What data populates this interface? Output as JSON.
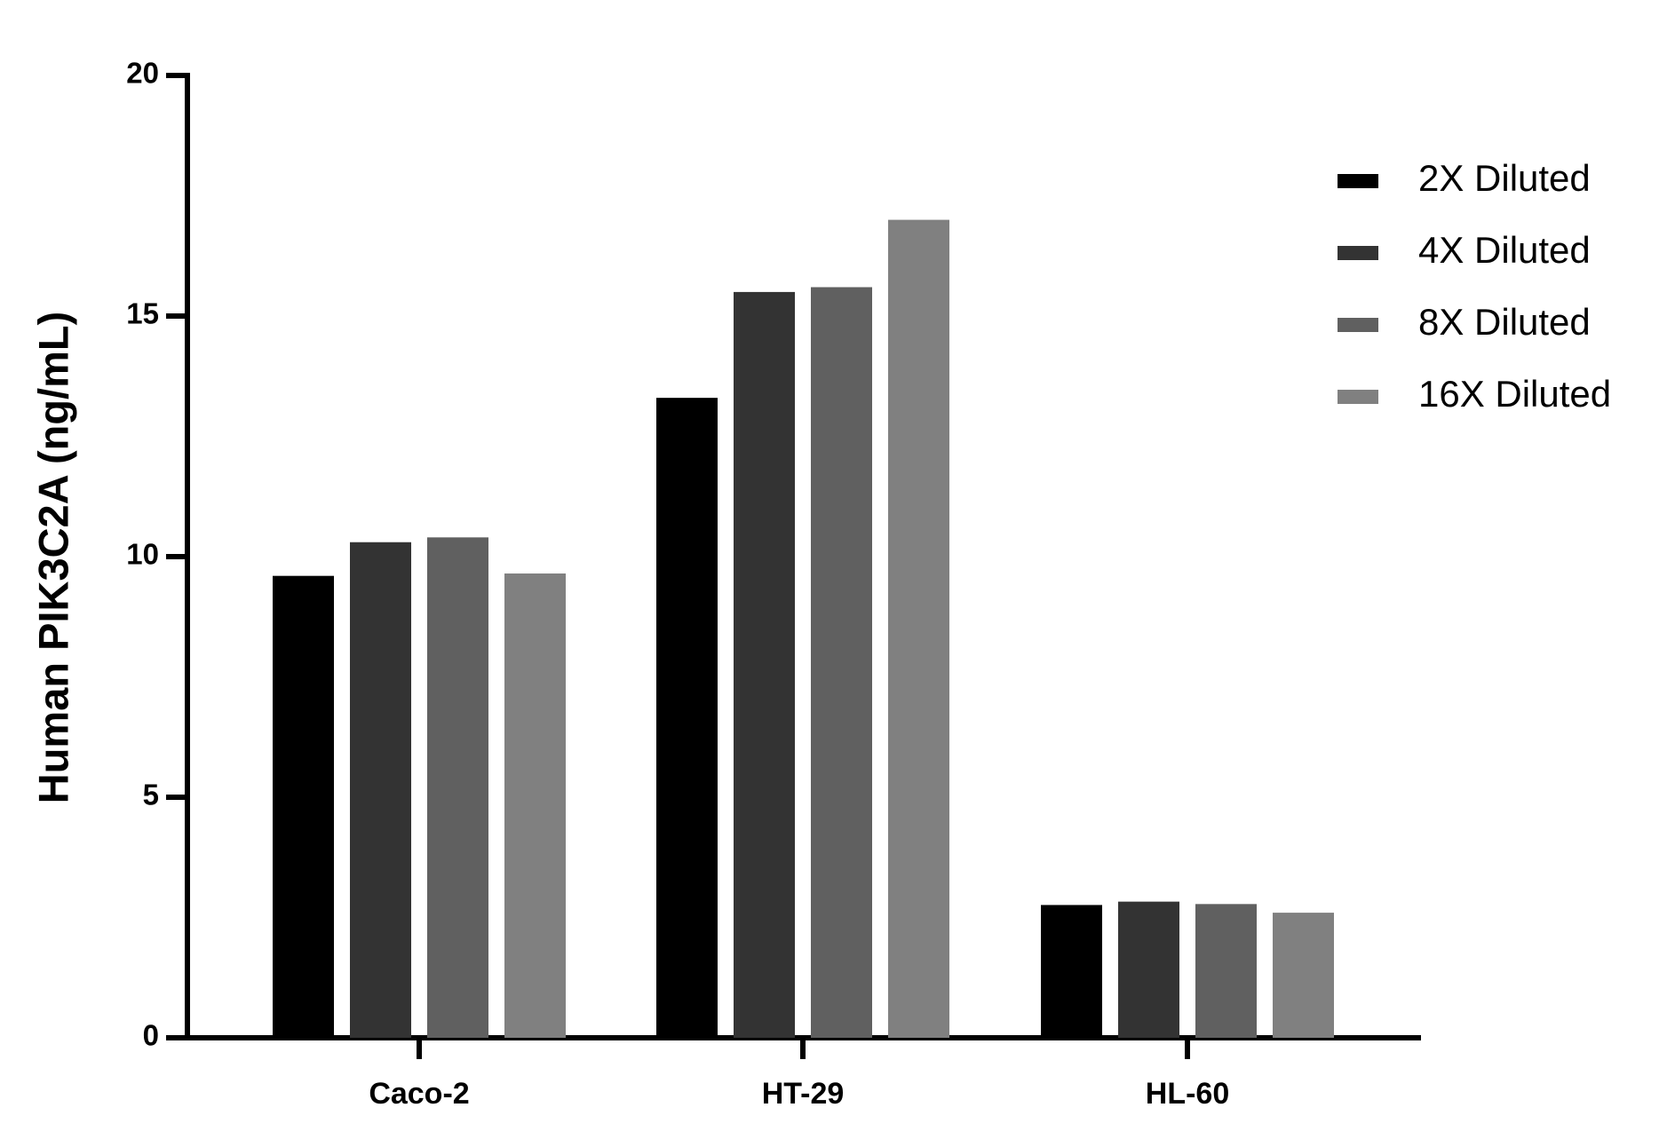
{
  "chart_data": {
    "type": "bar",
    "y_label": "Human PIK3C2A  (ng/mL)",
    "categories": [
      "Caco-2",
      "HT-29",
      "HL-60"
    ],
    "series": [
      {
        "name": "2X Diluted",
        "color": "#000000",
        "values": [
          9.6,
          13.3,
          2.76
        ]
      },
      {
        "name": "4X Diluted",
        "color": "#333333",
        "values": [
          10.3,
          15.5,
          2.83
        ]
      },
      {
        "name": "8X Diluted",
        "color": "#606060",
        "values": [
          10.4,
          15.6,
          2.78
        ]
      },
      {
        "name": "16X Diluted",
        "color": "#808080",
        "values": [
          9.65,
          17.0,
          2.6
        ]
      }
    ],
    "ylim": [
      0,
      20
    ],
    "yticks": [
      0,
      5,
      10,
      15,
      20
    ],
    "legend": "right"
  }
}
